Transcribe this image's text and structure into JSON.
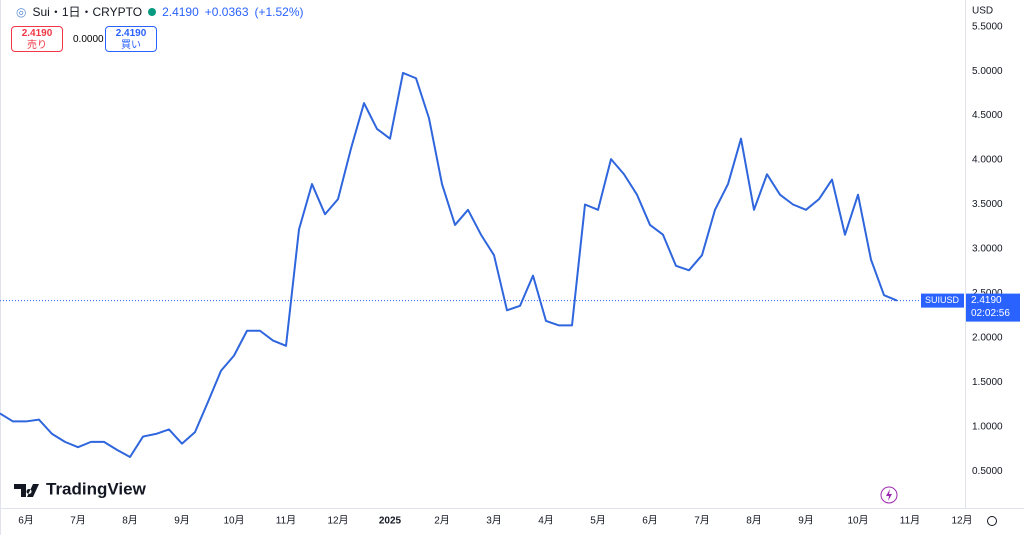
{
  "toolbar": {
    "symbol": "Sui・1日・CRYPTO",
    "price": "2.4190",
    "change": "+0.0363",
    "change_pct": "(+1.52%)",
    "sell": {
      "price": "2.4190",
      "label": "売り"
    },
    "spread": "0.0000",
    "buy": {
      "price": "2.4190",
      "label": "買い"
    }
  },
  "brand": "TradingView",
  "chart_data": {
    "type": "line",
    "currency": "USD",
    "color": "#2f66dd",
    "categories": [
      null,
      null,
      "6月",
      null,
      null,
      null,
      "7月",
      null,
      null,
      null,
      "8月",
      null,
      null,
      null,
      "9月",
      null,
      null,
      null,
      "10月",
      null,
      null,
      null,
      "11月",
      null,
      null,
      null,
      "12月",
      null,
      null,
      null,
      "2025",
      null,
      null,
      null,
      "2月",
      null,
      null,
      null,
      "3月",
      null,
      null,
      null,
      "4月",
      null,
      null,
      null,
      "5月",
      null,
      null,
      null,
      "6月",
      null,
      null,
      null,
      "7月",
      null,
      null,
      null,
      "8月",
      null,
      null,
      null,
      "9月",
      null,
      null,
      null,
      "10月",
      null,
      null,
      null,
      "11月",
      null,
      null,
      null,
      "12月",
      null
    ],
    "values": [
      1.15,
      1.06,
      1.06,
      1.08,
      0.92,
      0.83,
      0.77,
      0.83,
      0.83,
      0.74,
      0.66,
      0.89,
      0.92,
      0.97,
      0.81,
      0.94,
      1.28,
      1.63,
      1.8,
      2.08,
      2.08,
      1.97,
      1.91,
      3.22,
      3.73,
      3.39,
      3.56,
      4.13,
      4.64,
      4.35,
      4.24,
      4.98,
      4.92,
      4.47,
      3.73,
      3.27,
      3.44,
      3.16,
      2.93,
      2.31,
      2.36,
      2.7,
      2.19,
      2.14,
      2.14,
      3.5,
      3.44,
      4.01,
      3.84,
      3.61,
      3.27,
      3.16,
      2.81,
      2.76,
      2.93,
      3.44,
      3.73,
      4.24,
      3.44,
      3.84,
      3.61,
      3.5,
      3.44,
      3.56,
      3.78,
      3.16,
      3.61,
      2.88,
      2.48,
      2.42,
      null,
      null,
      null,
      null,
      null,
      null
    ],
    "ylim": [
      0.0864,
      5.8
    ],
    "yticks": [
      {
        "value": 0.5,
        "label": "0.5000"
      },
      {
        "value": 1,
        "label": "1.0000"
      },
      {
        "value": 1.5,
        "label": "1.5000"
      },
      {
        "value": 2,
        "label": "2.0000"
      },
      {
        "value": 2.5,
        "label": "2.5000"
      },
      {
        "value": 3,
        "label": "3.0000"
      },
      {
        "value": 3.5,
        "label": "3.5000"
      },
      {
        "value": 4,
        "label": "4.0000"
      },
      {
        "value": 4.5,
        "label": "4.5000"
      },
      {
        "value": 5,
        "label": "5.0000"
      },
      {
        "value": 5.5,
        "label": "5.5000"
      }
    ],
    "last_price": {
      "value": 2.419,
      "label": "2.4190"
    },
    "price_symbol": "SUIUSD",
    "countdown": "02:02:56",
    "grid": false
  }
}
